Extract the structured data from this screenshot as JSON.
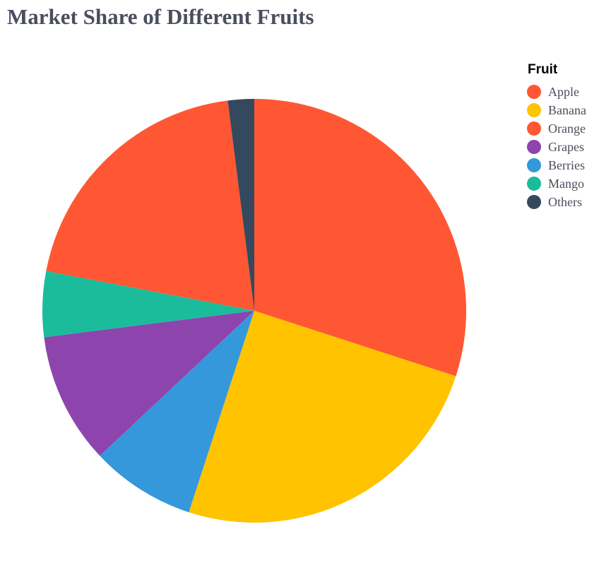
{
  "chart_data": {
    "type": "pie",
    "title": "Market Share of Different Fruits",
    "legend_title": "Fruit",
    "legend_position": "top-right",
    "start_at_top": true,
    "direction": "clockwise",
    "slices": [
      {
        "label": "Apple",
        "value": 30,
        "color": "#ff5733"
      },
      {
        "label": "Banana",
        "value": 25,
        "color": "#ffc300"
      },
      {
        "label": "Berries",
        "value": 8,
        "color": "#3498db"
      },
      {
        "label": "Grapes",
        "value": 10,
        "color": "#8e44ad"
      },
      {
        "label": "Mango",
        "value": 5,
        "color": "#1abc9c"
      },
      {
        "label": "Orange",
        "value": 20,
        "color": "#ff5733"
      },
      {
        "label": "Others",
        "value": 2,
        "color": "#34495e"
      }
    ],
    "legend_order": [
      "Apple",
      "Banana",
      "Orange",
      "Grapes",
      "Berries",
      "Mango",
      "Others"
    ]
  }
}
